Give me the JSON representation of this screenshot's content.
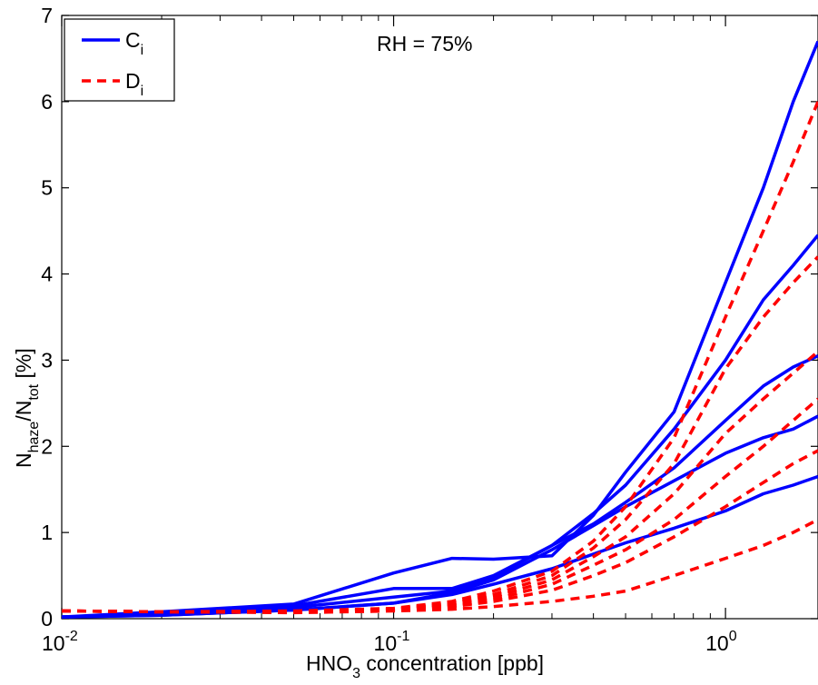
{
  "chart_data": {
    "type": "line",
    "annotation": "RH = 75%",
    "xlabel": {
      "main": "HNO",
      "sub": "3",
      "rest": " concentration [ppb]"
    },
    "ylabel": {
      "n1": "N",
      "s1": "haze",
      "mid": "/N",
      "s2": "tot",
      "rest": " [%]"
    },
    "xscale": "log",
    "xlim": [
      0.01,
      1.9
    ],
    "ylim": [
      0,
      7
    ],
    "x_ticks": [
      {
        "value": 0.01,
        "base": "10",
        "exp": "-2"
      },
      {
        "value": 0.1,
        "base": "10",
        "exp": "-1"
      },
      {
        "value": 1,
        "base": "10",
        "exp": "0"
      }
    ],
    "y_ticks": [
      "0",
      "1",
      "2",
      "3",
      "4",
      "5",
      "6",
      "7"
    ],
    "legend": {
      "position": "top-left",
      "entries": [
        {
          "base": "C",
          "sub": "i",
          "color": "#0000ff",
          "style": "solid"
        },
        {
          "base": "D",
          "sub": "i",
          "color": "#ff0000",
          "style": "dashed"
        }
      ]
    },
    "colors": {
      "C": "#0000ff",
      "D": "#ff0000"
    },
    "series": [
      {
        "group": "C",
        "x": [
          0.01,
          0.02,
          0.05,
          0.1,
          0.15,
          0.2,
          0.3,
          0.4,
          0.5,
          0.7,
          1.0,
          1.3,
          1.6,
          1.9
        ],
        "y": [
          0.02,
          0.08,
          0.17,
          0.53,
          0.7,
          0.69,
          0.73,
          1.2,
          1.7,
          2.4,
          3.9,
          5.0,
          6.0,
          6.7
        ]
      },
      {
        "group": "C",
        "x": [
          0.01,
          0.02,
          0.05,
          0.1,
          0.15,
          0.2,
          0.3,
          0.4,
          0.5,
          0.7,
          1.0,
          1.3,
          1.6,
          1.9
        ],
        "y": [
          0.02,
          0.05,
          0.15,
          0.35,
          0.35,
          0.5,
          0.85,
          1.22,
          1.55,
          2.2,
          3.0,
          3.7,
          4.1,
          4.45
        ]
      },
      {
        "group": "C",
        "x": [
          0.01,
          0.02,
          0.05,
          0.1,
          0.15,
          0.2,
          0.3,
          0.4,
          0.5,
          0.7,
          1.0,
          1.3,
          1.6,
          1.9
        ],
        "y": [
          0.02,
          0.05,
          0.13,
          0.25,
          0.32,
          0.48,
          0.85,
          1.1,
          1.35,
          1.75,
          2.3,
          2.7,
          2.92,
          3.05
        ]
      },
      {
        "group": "C",
        "x": [
          0.01,
          0.02,
          0.05,
          0.1,
          0.15,
          0.2,
          0.3,
          0.4,
          0.5,
          0.7,
          1.0,
          1.3,
          1.6,
          1.9
        ],
        "y": [
          0.02,
          0.04,
          0.1,
          0.18,
          0.3,
          0.45,
          0.8,
          1.08,
          1.3,
          1.6,
          1.92,
          2.1,
          2.2,
          2.35
        ]
      },
      {
        "group": "C",
        "x": [
          0.01,
          0.02,
          0.05,
          0.1,
          0.15,
          0.2,
          0.3,
          0.4,
          0.5,
          0.7,
          1.0,
          1.3,
          1.6,
          1.9
        ],
        "y": [
          0.02,
          0.04,
          0.1,
          0.18,
          0.28,
          0.4,
          0.58,
          0.75,
          0.88,
          1.05,
          1.25,
          1.45,
          1.55,
          1.65
        ]
      },
      {
        "group": "D",
        "x": [
          0.01,
          0.02,
          0.05,
          0.1,
          0.15,
          0.2,
          0.3,
          0.4,
          0.5,
          0.7,
          1.0,
          1.3,
          1.6,
          1.9
        ],
        "y": [
          0.09,
          0.08,
          0.09,
          0.12,
          0.2,
          0.32,
          0.55,
          0.9,
          1.3,
          2.1,
          3.5,
          4.5,
          5.3,
          6.0
        ]
      },
      {
        "group": "D",
        "x": [
          0.01,
          0.02,
          0.05,
          0.1,
          0.15,
          0.2,
          0.3,
          0.4,
          0.5,
          0.7,
          1.0,
          1.3,
          1.6,
          1.9
        ],
        "y": [
          0.09,
          0.08,
          0.08,
          0.11,
          0.18,
          0.28,
          0.5,
          0.82,
          1.15,
          1.8,
          2.9,
          3.5,
          3.9,
          4.2
        ]
      },
      {
        "group": "D",
        "x": [
          0.01,
          0.02,
          0.05,
          0.1,
          0.15,
          0.2,
          0.3,
          0.4,
          0.5,
          0.7,
          1.0,
          1.3,
          1.6,
          1.9
        ],
        "y": [
          0.09,
          0.08,
          0.08,
          0.11,
          0.17,
          0.25,
          0.45,
          0.72,
          0.95,
          1.45,
          2.15,
          2.55,
          2.85,
          3.1
        ]
      },
      {
        "group": "D",
        "x": [
          0.01,
          0.02,
          0.05,
          0.1,
          0.15,
          0.2,
          0.3,
          0.4,
          0.5,
          0.7,
          1.0,
          1.3,
          1.6,
          1.9
        ],
        "y": [
          0.09,
          0.08,
          0.08,
          0.1,
          0.15,
          0.22,
          0.4,
          0.62,
          0.8,
          1.15,
          1.65,
          2.0,
          2.3,
          2.55
        ]
      },
      {
        "group": "D",
        "x": [
          0.01,
          0.02,
          0.05,
          0.1,
          0.15,
          0.2,
          0.3,
          0.4,
          0.5,
          0.7,
          1.0,
          1.3,
          1.6,
          1.9
        ],
        "y": [
          0.09,
          0.08,
          0.08,
          0.1,
          0.14,
          0.2,
          0.33,
          0.5,
          0.65,
          0.95,
          1.3,
          1.58,
          1.8,
          1.95
        ]
      },
      {
        "group": "D",
        "x": [
          0.01,
          0.02,
          0.05,
          0.1,
          0.15,
          0.2,
          0.3,
          0.4,
          0.5,
          0.7,
          1.0,
          1.3,
          1.6,
          1.9
        ],
        "y": [
          0.09,
          0.08,
          0.07,
          0.09,
          0.11,
          0.14,
          0.2,
          0.26,
          0.32,
          0.5,
          0.7,
          0.85,
          1.0,
          1.15
        ]
      }
    ]
  }
}
